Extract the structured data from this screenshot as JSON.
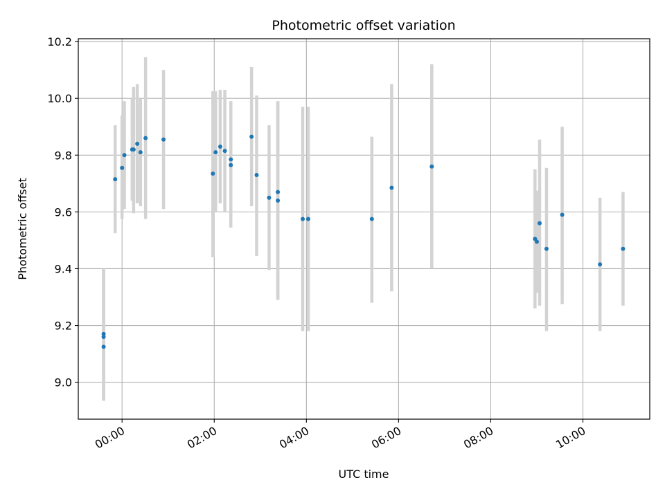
{
  "chart_data": {
    "type": "scatter",
    "title": "Photometric offset variation",
    "xlabel": "UTC time",
    "ylabel": "Photometric offset",
    "x_unit": "hours since 00:00 UTC",
    "xlim": [
      -0.95,
      11.45
    ],
    "ylim": [
      8.87,
      10.21
    ],
    "x_ticks": [
      {
        "value": 0,
        "label": "00:00"
      },
      {
        "value": 2,
        "label": "02:00"
      },
      {
        "value": 4,
        "label": "04:00"
      },
      {
        "value": 6,
        "label": "06:00"
      },
      {
        "value": 8,
        "label": "08:00"
      },
      {
        "value": 10,
        "label": "10:00"
      }
    ],
    "y_ticks": [
      {
        "value": 9.0,
        "label": "9.0"
      },
      {
        "value": 9.2,
        "label": "9.2"
      },
      {
        "value": 9.4,
        "label": "9.4"
      },
      {
        "value": 9.6,
        "label": "9.6"
      },
      {
        "value": 9.8,
        "label": "9.8"
      },
      {
        "value": 10.0,
        "label": "10.0"
      },
      {
        "value": 10.2,
        "label": "10.2"
      }
    ],
    "grid": true,
    "colors": {
      "marker": "#1f77b4",
      "errorbar": "#d3d3d3",
      "grid": "#b0b0b0"
    },
    "points": [
      {
        "x": -0.4,
        "y": 9.17,
        "ylo": 8.935,
        "yhi": 9.4
      },
      {
        "x": -0.4,
        "y": 9.16,
        "ylo": 8.935,
        "yhi": 9.4
      },
      {
        "x": -0.4,
        "y": 9.125,
        "ylo": 8.935,
        "yhi": 9.4
      },
      {
        "x": -0.15,
        "y": 9.715,
        "ylo": 9.525,
        "yhi": 9.905
      },
      {
        "x": 0.0,
        "y": 9.755,
        "ylo": 9.575,
        "yhi": 9.94
      },
      {
        "x": 0.05,
        "y": 9.8,
        "ylo": 9.61,
        "yhi": 9.99
      },
      {
        "x": 0.22,
        "y": 9.82,
        "ylo": 9.64,
        "yhi": 10.0
      },
      {
        "x": 0.25,
        "y": 9.82,
        "ylo": 9.595,
        "yhi": 10.04
      },
      {
        "x": 0.33,
        "y": 9.84,
        "ylo": 9.63,
        "yhi": 10.05
      },
      {
        "x": 0.4,
        "y": 9.81,
        "ylo": 9.62,
        "yhi": 10.0
      },
      {
        "x": 0.51,
        "y": 9.86,
        "ylo": 9.575,
        "yhi": 10.145
      },
      {
        "x": 0.9,
        "y": 9.855,
        "ylo": 9.61,
        "yhi": 10.1
      },
      {
        "x": 1.97,
        "y": 9.735,
        "ylo": 9.44,
        "yhi": 10.025
      },
      {
        "x": 2.03,
        "y": 9.81,
        "ylo": 9.6,
        "yhi": 10.025
      },
      {
        "x": 2.13,
        "y": 9.83,
        "ylo": 9.63,
        "yhi": 10.03
      },
      {
        "x": 2.23,
        "y": 9.815,
        "ylo": 9.6,
        "yhi": 10.03
      },
      {
        "x": 2.36,
        "y": 9.785,
        "ylo": 9.58,
        "yhi": 9.99
      },
      {
        "x": 2.36,
        "y": 9.765,
        "ylo": 9.545,
        "yhi": 9.99
      },
      {
        "x": 2.81,
        "y": 9.865,
        "ylo": 9.62,
        "yhi": 10.11
      },
      {
        "x": 2.92,
        "y": 9.73,
        "ylo": 9.445,
        "yhi": 10.01
      },
      {
        "x": 3.19,
        "y": 9.65,
        "ylo": 9.395,
        "yhi": 9.905
      },
      {
        "x": 3.38,
        "y": 9.67,
        "ylo": 9.29,
        "yhi": 9.99
      },
      {
        "x": 3.38,
        "y": 9.64,
        "ylo": 9.29,
        "yhi": 9.99
      },
      {
        "x": 3.92,
        "y": 9.575,
        "ylo": 9.18,
        "yhi": 9.97
      },
      {
        "x": 4.04,
        "y": 9.575,
        "ylo": 9.18,
        "yhi": 9.97
      },
      {
        "x": 5.42,
        "y": 9.575,
        "ylo": 9.28,
        "yhi": 9.865
      },
      {
        "x": 5.85,
        "y": 9.685,
        "ylo": 9.32,
        "yhi": 10.05
      },
      {
        "x": 6.72,
        "y": 9.76,
        "ylo": 9.4,
        "yhi": 10.12
      },
      {
        "x": 8.96,
        "y": 9.505,
        "ylo": 9.26,
        "yhi": 9.75
      },
      {
        "x": 9.0,
        "y": 9.495,
        "ylo": 9.315,
        "yhi": 9.675
      },
      {
        "x": 9.06,
        "y": 9.56,
        "ylo": 9.27,
        "yhi": 9.855
      },
      {
        "x": 9.21,
        "y": 9.47,
        "ylo": 9.18,
        "yhi": 9.755
      },
      {
        "x": 9.55,
        "y": 9.59,
        "ylo": 9.275,
        "yhi": 9.9
      },
      {
        "x": 10.37,
        "y": 9.415,
        "ylo": 9.18,
        "yhi": 9.65
      },
      {
        "x": 10.87,
        "y": 9.47,
        "ylo": 9.27,
        "yhi": 9.67
      }
    ]
  }
}
